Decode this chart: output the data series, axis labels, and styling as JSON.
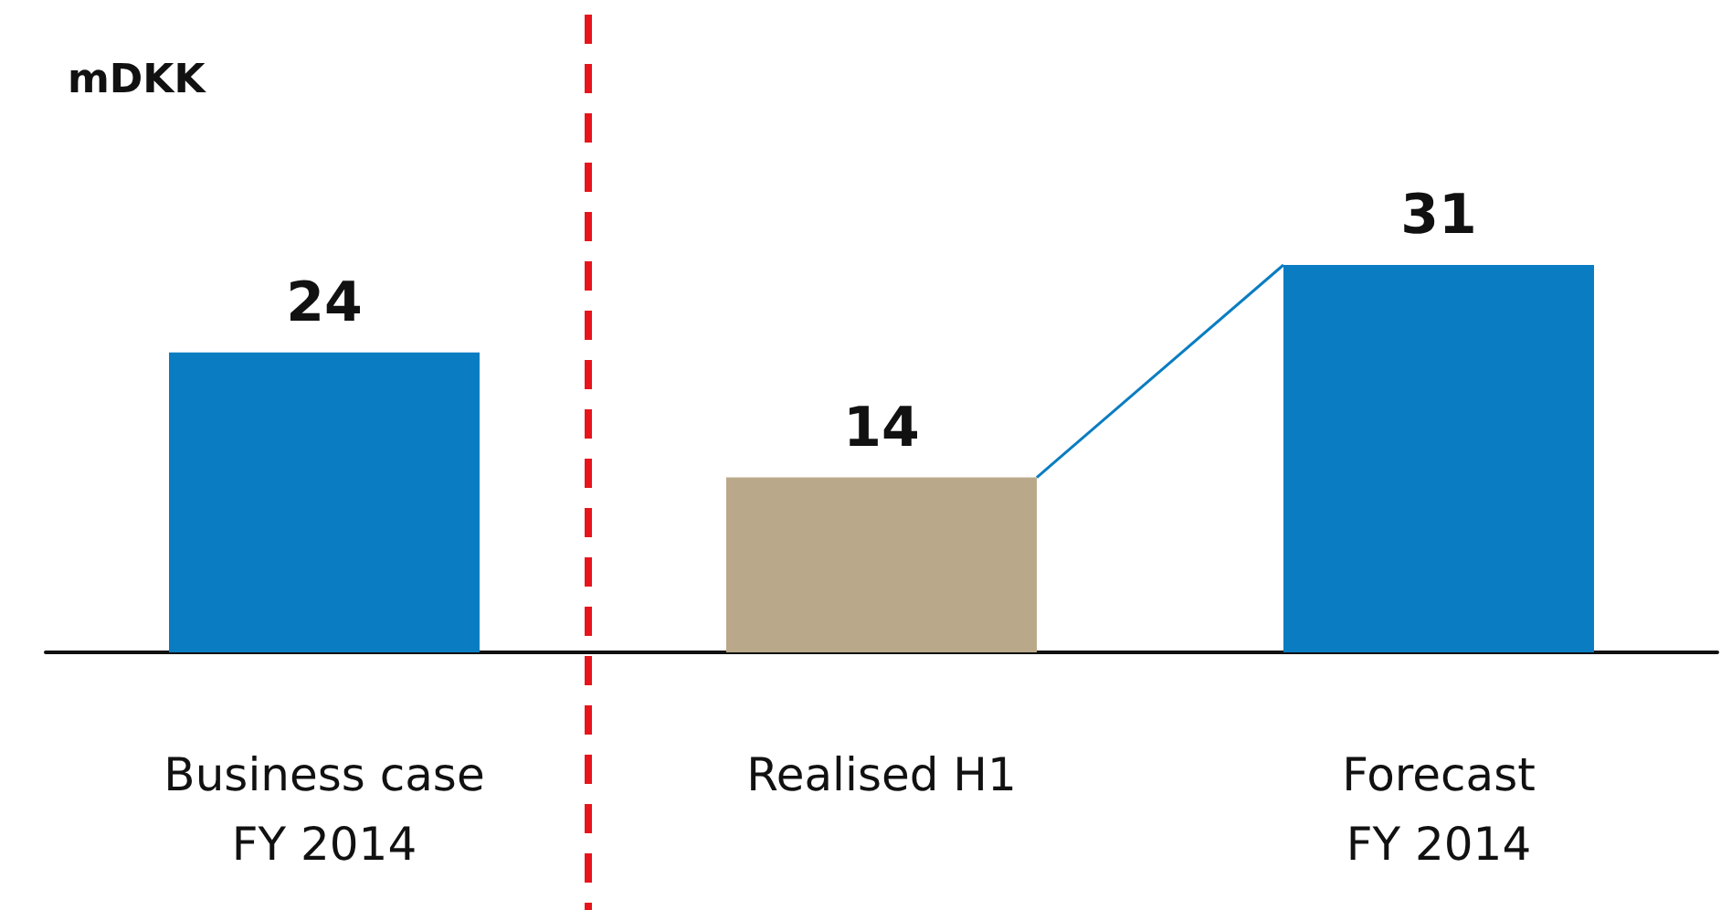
{
  "chart_data": {
    "type": "bar",
    "ylabel": "mDKK",
    "categories": [
      "Business case\nFY 2014",
      "Realised H1",
      "Forecast\nFY 2014"
    ],
    "values": [
      24,
      14,
      31
    ],
    "colors": [
      "#0a7dc2",
      "#b9a98a",
      "#0a7dc2"
    ],
    "data_labels": true
  }
}
